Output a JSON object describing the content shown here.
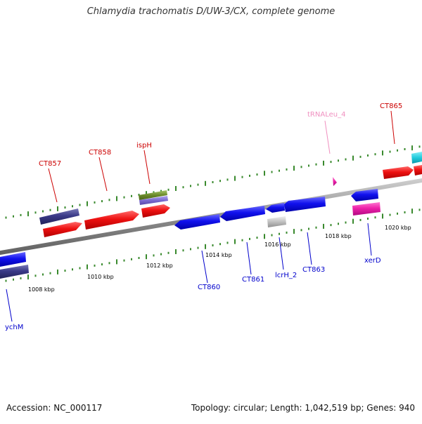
{
  "title": "Chlamydia trachomatis D/UW-3/CX, complete genome",
  "footer": {
    "accession": "Accession: NC_000117",
    "summary": "Topology: circular; Length: 1,042,519 bp; Genes: 940"
  },
  "colors": {
    "backbone": "#8c8c8c",
    "tick_forward": "#3a8a2e",
    "tick_reverse": "#3a8a2e",
    "forward_label": "#cc0000",
    "reverse_label": "#0000cc",
    "trna_label": "#f090c0",
    "gene_red": "#ee1111",
    "gene_blue": "#1111ee",
    "gene_navy": "#3a3a88",
    "gene_olive": "#6a8a2a",
    "gene_lavender": "#7a6ad0",
    "gene_magenta": "#ee22aa",
    "gene_grey": "#c0c0c0",
    "gene_cyan": "#22ccdd",
    "trna_pink": "#f090c0"
  },
  "ruler": {
    "ticks": [
      "1008 kbp",
      "1010 kbp",
      "1012 kbp",
      "1014 kbp",
      "1016 kbp",
      "1018 kbp",
      "1020 kbp"
    ],
    "ticks_kbp": [
      1008,
      1010,
      1012,
      1014,
      1016,
      1018,
      1020
    ]
  },
  "genes": [
    {
      "label": "CT857",
      "strand": "+",
      "color": "gene_red"
    },
    {
      "label": "CT858",
      "strand": "+",
      "color": "gene_red"
    },
    {
      "label": "ispH",
      "strand": "+",
      "color": "gene_red"
    },
    {
      "label": "tRNALeu_4",
      "strand": "+",
      "color": "trna_pink"
    },
    {
      "label": "CT865",
      "strand": "+",
      "color": "gene_red"
    },
    {
      "label": "ychM",
      "strand": "-",
      "color": "gene_blue"
    },
    {
      "label": "CT860",
      "strand": "-",
      "color": "gene_blue"
    },
    {
      "label": "CT861",
      "strand": "-",
      "color": "gene_blue"
    },
    {
      "label": "lcrH_2",
      "strand": "-",
      "color": "gene_grey"
    },
    {
      "label": "CT863",
      "strand": "-",
      "color": "gene_blue"
    },
    {
      "label": "xerD",
      "strand": "-",
      "color": "gene_blue"
    }
  ]
}
